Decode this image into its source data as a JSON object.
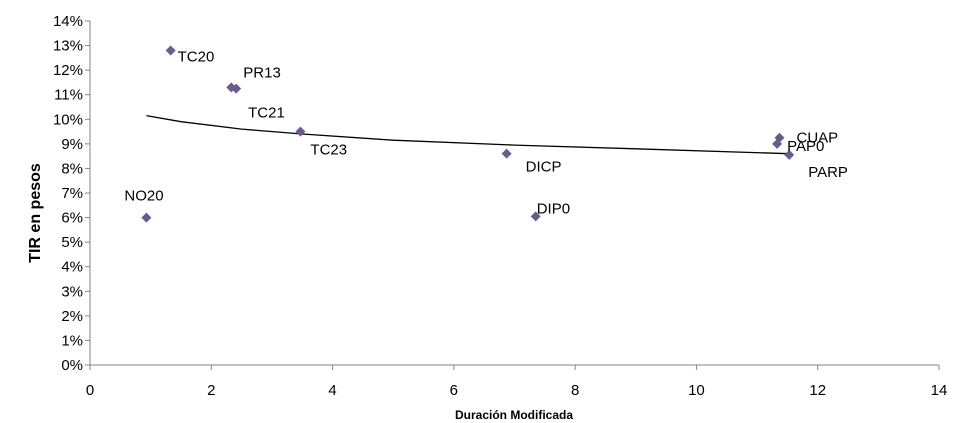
{
  "chart_data": {
    "type": "scatter",
    "xlabel": "Duración Modificada",
    "ylabel": "TIR en pesos",
    "xlim": [
      0,
      14
    ],
    "ylim": [
      0,
      14
    ],
    "x_ticks": [
      "0",
      "2",
      "4",
      "6",
      "8",
      "10",
      "12",
      "14"
    ],
    "y_ticks": [
      "0%",
      "1%",
      "2%",
      "3%",
      "4%",
      "5%",
      "6%",
      "7%",
      "8%",
      "9%",
      "10%",
      "11%",
      "12%",
      "13%",
      "14%"
    ],
    "grid": false,
    "legend": "none",
    "marker": "diamond",
    "marker_color": "#6a5a8e",
    "points": [
      {
        "label": "TC20",
        "x": 1.33,
        "y": 12.8
      },
      {
        "label": "PR13",
        "x": 2.33,
        "y": 11.3
      },
      {
        "label": "TC21",
        "x": 2.41,
        "y": 11.25
      },
      {
        "label": "TC23",
        "x": 3.47,
        "y": 9.5
      },
      {
        "label": "NO20",
        "x": 0.93,
        "y": 6.0
      },
      {
        "label": "DICP",
        "x": 6.87,
        "y": 8.6
      },
      {
        "label": "DIP0",
        "x": 7.35,
        "y": 6.05
      },
      {
        "label": "CUAP",
        "x": 11.37,
        "y": 9.25
      },
      {
        "label": "PAP0",
        "x": 11.33,
        "y": 9.0
      },
      {
        "label": "PARP",
        "x": 11.53,
        "y": 8.55
      }
    ],
    "trendline": {
      "type": "power",
      "color": "#000000",
      "points": [
        {
          "x": 0.93,
          "y": 10.15
        },
        {
          "x": 1.5,
          "y": 9.9
        },
        {
          "x": 2.5,
          "y": 9.6
        },
        {
          "x": 3.5,
          "y": 9.4
        },
        {
          "x": 5,
          "y": 9.15
        },
        {
          "x": 7,
          "y": 8.95
        },
        {
          "x": 9,
          "y": 8.8
        },
        {
          "x": 11.53,
          "y": 8.6
        }
      ]
    }
  }
}
